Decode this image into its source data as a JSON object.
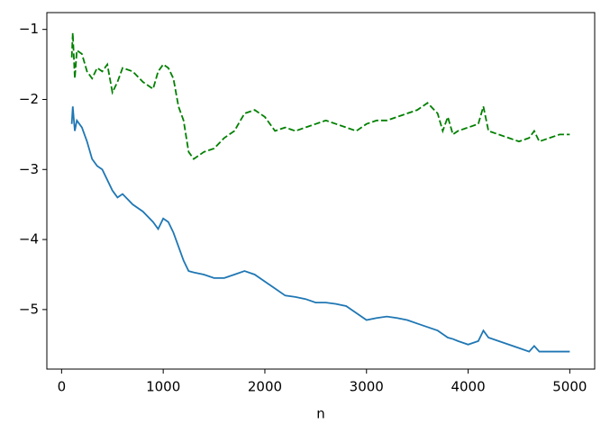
{
  "chart_data": {
    "type": "line",
    "xlabel": "n",
    "x": [
      100,
      110,
      130,
      150,
      200,
      250,
      300,
      350,
      400,
      450,
      500,
      550,
      600,
      700,
      800,
      900,
      950,
      1000,
      1050,
      1100,
      1150,
      1200,
      1250,
      1300,
      1400,
      1500,
      1600,
      1700,
      1800,
      1900,
      2000,
      2100,
      2200,
      2300,
      2400,
      2500,
      2600,
      2700,
      2800,
      2900,
      3000,
      3100,
      3200,
      3300,
      3400,
      3500,
      3600,
      3700,
      3750,
      3800,
      3850,
      3900,
      4000,
      4100,
      4150,
      4200,
      4300,
      4400,
      4500,
      4600,
      4650,
      4700,
      4800,
      4900,
      5000
    ],
    "series": [
      {
        "color": "#1f77b4",
        "dashed": false,
        "values": [
          -2.35,
          -2.1,
          -2.45,
          -2.3,
          -2.4,
          -2.6,
          -2.85,
          -2.95,
          -3.0,
          -3.15,
          -3.3,
          -3.4,
          -3.35,
          -3.5,
          -3.6,
          -3.75,
          -3.85,
          -3.7,
          -3.75,
          -3.9,
          -4.1,
          -4.3,
          -4.45,
          -4.47,
          -4.5,
          -4.55,
          -4.55,
          -4.5,
          -4.45,
          -4.5,
          -4.6,
          -4.7,
          -4.8,
          -4.82,
          -4.85,
          -4.9,
          -4.9,
          -4.92,
          -4.95,
          -5.05,
          -5.15,
          -5.12,
          -5.1,
          -5.12,
          -5.15,
          -5.2,
          -5.25,
          -5.3,
          -5.35,
          -5.4,
          -5.42,
          -5.45,
          -5.5,
          -5.45,
          -5.3,
          -5.4,
          -5.45,
          -5.5,
          -5.55,
          -5.6,
          -5.52,
          -5.6,
          -5.6,
          -5.6,
          -5.6
        ]
      },
      {
        "color": "#008000",
        "dashed": true,
        "values": [
          -1.4,
          -1.05,
          -1.7,
          -1.3,
          -1.35,
          -1.6,
          -1.7,
          -1.55,
          -1.6,
          -1.5,
          -1.9,
          -1.75,
          -1.55,
          -1.6,
          -1.75,
          -1.85,
          -1.6,
          -1.5,
          -1.55,
          -1.7,
          -2.1,
          -2.3,
          -2.75,
          -2.85,
          -2.75,
          -2.7,
          -2.55,
          -2.45,
          -2.2,
          -2.15,
          -2.25,
          -2.45,
          -2.4,
          -2.45,
          -2.4,
          -2.35,
          -2.3,
          -2.35,
          -2.4,
          -2.45,
          -2.35,
          -2.3,
          -2.3,
          -2.25,
          -2.2,
          -2.15,
          -2.05,
          -2.2,
          -2.45,
          -2.25,
          -2.5,
          -2.45,
          -2.4,
          -2.35,
          -2.1,
          -2.45,
          -2.5,
          -2.55,
          -2.6,
          -2.55,
          -2.45,
          -2.6,
          -2.55,
          -2.5,
          -2.5
        ]
      }
    ],
    "xlim": [
      -145,
      5245
    ],
    "ylim": [
      -5.85,
      -0.76
    ],
    "xticks": [
      0,
      1000,
      2000,
      3000,
      4000,
      5000
    ],
    "yticks": [
      {
        "value": -1,
        "label": "−1"
      },
      {
        "value": -2,
        "label": "−2"
      },
      {
        "value": -3,
        "label": "−3"
      },
      {
        "value": -4,
        "label": "−4"
      },
      {
        "value": -5,
        "label": "−5"
      }
    ]
  }
}
